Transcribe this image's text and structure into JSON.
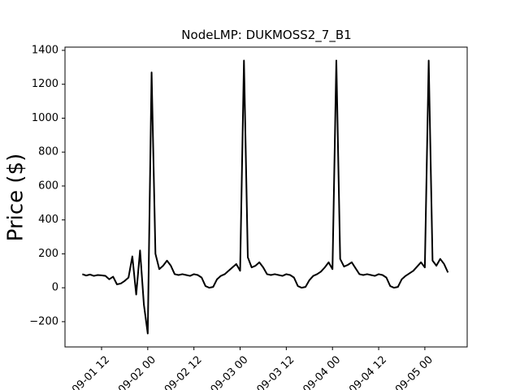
{
  "chart_data": {
    "type": "line",
    "title": "NodeLMP: DUKMOSS2_7_B1",
    "y_label": "Price ($)",
    "color": "#000000",
    "x": [
      "09-01 07:00",
      "09-01 08:00",
      "09-01 09:00",
      "09-01 10:00",
      "09-01 11:00",
      "09-01 12:00",
      "09-01 13:00",
      "09-01 14:00",
      "09-01 15:00",
      "09-01 16:00",
      "09-01 17:00",
      "09-01 18:00",
      "09-01 19:00",
      "09-01 20:00",
      "09-01 21:00",
      "09-01 22:00",
      "09-01 23:00",
      "09-02 00:00",
      "09-02 01:00",
      "09-02 02:00",
      "09-02 03:00",
      "09-02 04:00",
      "09-02 05:00",
      "09-02 06:00",
      "09-02 07:00",
      "09-02 08:00",
      "09-02 09:00",
      "09-02 10:00",
      "09-02 11:00",
      "09-02 12:00",
      "09-02 13:00",
      "09-02 14:00",
      "09-02 15:00",
      "09-02 16:00",
      "09-02 17:00",
      "09-02 18:00",
      "09-02 19:00",
      "09-02 20:00",
      "09-02 21:00",
      "09-02 22:00",
      "09-02 23:00",
      "09-03 00:00",
      "09-03 01:00",
      "09-03 02:00",
      "09-03 03:00",
      "09-03 04:00",
      "09-03 05:00",
      "09-03 06:00",
      "09-03 07:00",
      "09-03 08:00",
      "09-03 09:00",
      "09-03 10:00",
      "09-03 11:00",
      "09-03 12:00",
      "09-03 13:00",
      "09-03 14:00",
      "09-03 15:00",
      "09-03 16:00",
      "09-03 17:00",
      "09-03 18:00",
      "09-03 19:00",
      "09-03 20:00",
      "09-03 21:00",
      "09-03 22:00",
      "09-03 23:00",
      "09-04 00:00",
      "09-04 01:00",
      "09-04 02:00",
      "09-04 03:00",
      "09-04 04:00",
      "09-04 05:00",
      "09-04 06:00",
      "09-04 07:00",
      "09-04 08:00",
      "09-04 09:00",
      "09-04 10:00",
      "09-04 11:00",
      "09-04 12:00",
      "09-04 13:00",
      "09-04 14:00",
      "09-04 15:00",
      "09-04 16:00",
      "09-04 17:00",
      "09-04 18:00",
      "09-04 19:00",
      "09-04 20:00",
      "09-04 21:00",
      "09-04 22:00",
      "09-04 23:00",
      "09-05 00:00",
      "09-05 01:00",
      "09-05 02:00",
      "09-05 03:00",
      "09-05 04:00",
      "09-05 05:00",
      "09-05 06:00"
    ],
    "values": [
      80,
      72,
      78,
      70,
      75,
      73,
      70,
      50,
      65,
      20,
      25,
      40,
      60,
      185,
      -40,
      220,
      -100,
      -270,
      1270,
      200,
      110,
      130,
      160,
      130,
      80,
      75,
      80,
      75,
      70,
      80,
      75,
      60,
      10,
      0,
      5,
      50,
      70,
      80,
      100,
      120,
      140,
      100,
      1340,
      180,
      120,
      130,
      150,
      120,
      80,
      75,
      80,
      75,
      70,
      80,
      75,
      60,
      10,
      0,
      5,
      45,
      70,
      80,
      95,
      120,
      150,
      110,
      1340,
      170,
      125,
      135,
      150,
      115,
      80,
      75,
      80,
      75,
      70,
      80,
      75,
      60,
      10,
      0,
      5,
      50,
      70,
      85,
      100,
      125,
      150,
      120,
      1340,
      160,
      130,
      170,
      140,
      90
    ],
    "xlim": [
      "09-01 02:30",
      "09-05 11:00"
    ],
    "xticks": [
      {
        "value": "09-01 12:00",
        "label": "09-01 12"
      },
      {
        "value": "09-02 00:00",
        "label": "09-02 00"
      },
      {
        "value": "09-02 12:00",
        "label": "09-02 12"
      },
      {
        "value": "09-03 00:00",
        "label": "09-03 00"
      },
      {
        "value": "09-03 12:00",
        "label": "09-03 12"
      },
      {
        "value": "09-04 00:00",
        "label": "09-04 00"
      },
      {
        "value": "09-04 12:00",
        "label": "09-04 12"
      },
      {
        "value": "09-05 00:00",
        "label": "09-05 00"
      }
    ],
    "ylim": [
      -349,
      1419
    ],
    "yticks": [
      {
        "value": -200,
        "label": "−200"
      },
      0,
      200,
      400,
      600,
      800,
      1000,
      1200,
      1400
    ]
  }
}
